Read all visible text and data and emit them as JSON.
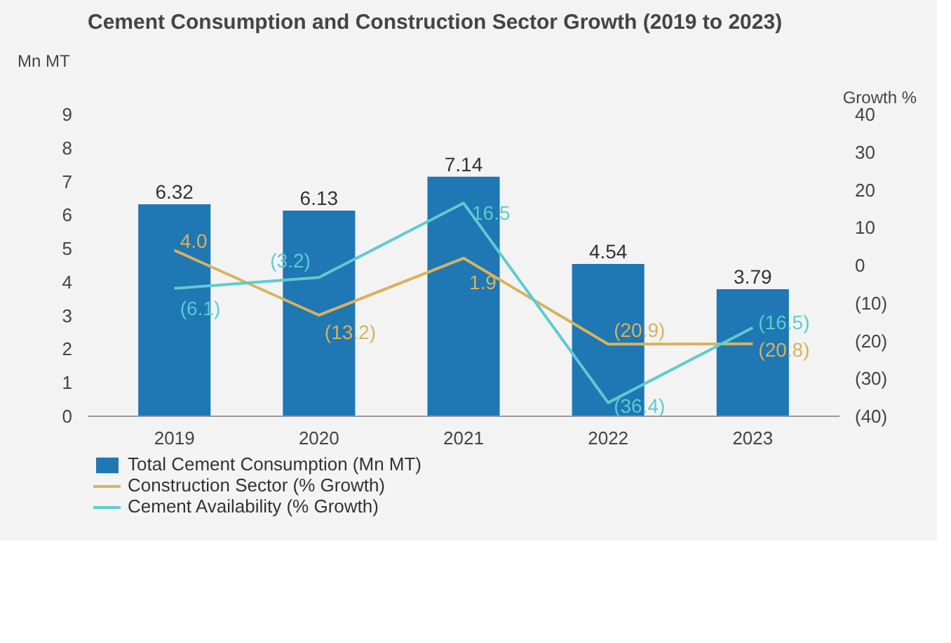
{
  "chart_data": {
    "type": "bar",
    "title": "Cement Consumption and Construction Sector Growth (2019 to 2023)",
    "ylabel": "Mn MT",
    "y2label": "Growth %",
    "categories": [
      "2019",
      "2020",
      "2021",
      "2022",
      "2023"
    ],
    "ylim": [
      0,
      9
    ],
    "yticks": [
      0,
      1,
      2,
      3,
      4,
      5,
      6,
      7,
      8,
      9
    ],
    "y2lim": [
      -40,
      40
    ],
    "y2ticks": [
      {
        "value": -40,
        "label": "(40)"
      },
      {
        "value": -30,
        "label": "(30)"
      },
      {
        "value": -20,
        "label": "(20)"
      },
      {
        "value": -10,
        "label": "(10)"
      },
      0,
      10,
      20,
      30,
      40
    ],
    "series": [
      {
        "name": "Total Cement Consumption (Mn MT)",
        "color": "#1f77b4",
        "values": [
          6.32,
          6.13,
          7.14,
          4.54,
          3.79
        ],
        "value_labels": [
          "6.32",
          "6.13",
          "7.14",
          "4.54",
          "3.79"
        ]
      },
      {
        "name": "Construction Sector (% Growth)",
        "type": "line",
        "axis": "y2",
        "color": "#d8b35c",
        "values": [
          4.0,
          -13.2,
          1.9,
          -20.9,
          -20.8
        ],
        "value_labels": [
          "4.0",
          "(13.2)",
          "1.9",
          "(20.9)",
          "(20.8)"
        ]
      },
      {
        "name": "Cement Availability (% Growth)",
        "type": "line",
        "axis": "y2",
        "color": "#5ecbcf",
        "values": [
          -6.1,
          -3.2,
          16.5,
          -36.4,
          -16.5
        ],
        "value_labels": [
          "(6.1)",
          "(3.2)",
          "16.5",
          "(36.4)",
          "(16.5)"
        ]
      }
    ],
    "grid": false,
    "legend": "bottom"
  }
}
